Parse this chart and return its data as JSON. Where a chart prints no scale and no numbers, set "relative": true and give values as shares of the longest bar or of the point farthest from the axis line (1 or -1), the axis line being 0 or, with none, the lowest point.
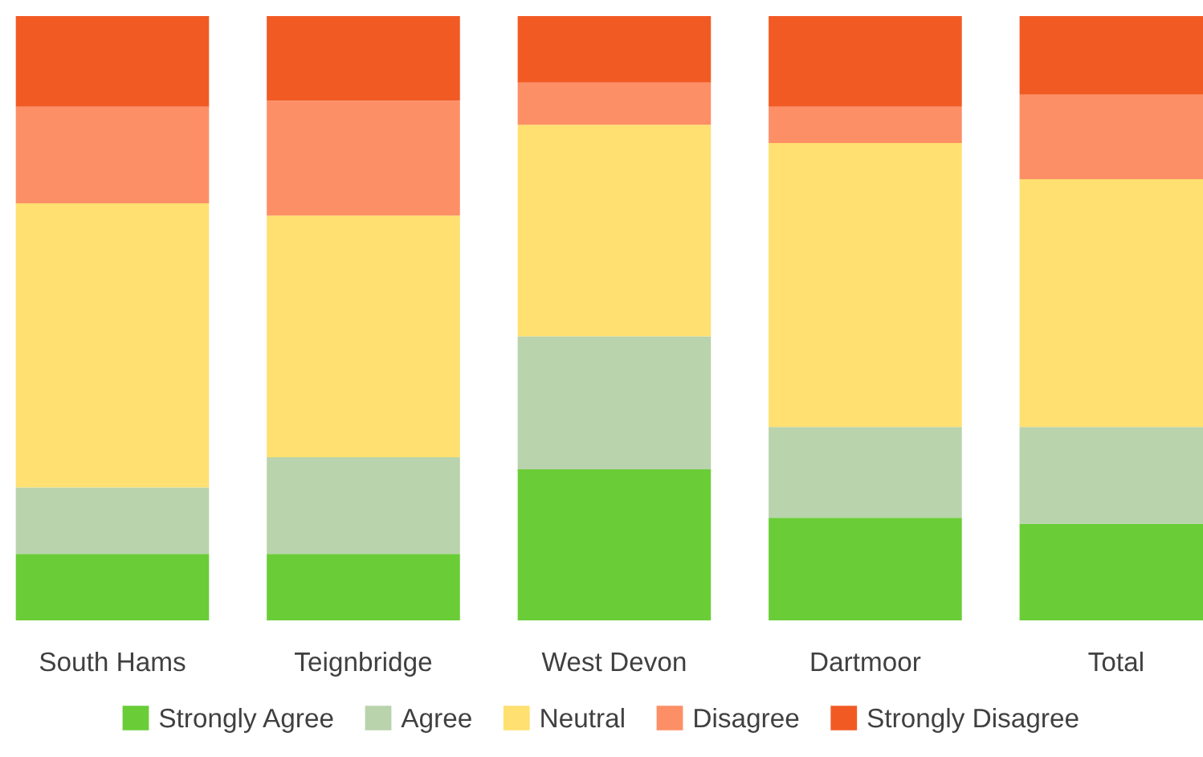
{
  "chart_data": {
    "type": "bar",
    "stacked": true,
    "relative": true,
    "legend": "bottom",
    "grid": false,
    "categories": [
      "South Hams",
      "Teignbridge",
      "West Devon",
      "Dartmoor",
      "Total"
    ],
    "series": [
      {
        "name": "Strongly Agree",
        "color": "#6acd38",
        "values": [
          0.11,
          0.11,
          0.25,
          0.17,
          0.16
        ]
      },
      {
        "name": "Agree",
        "color": "#b9d3ad",
        "values": [
          0.11,
          0.16,
          0.22,
          0.15,
          0.16
        ]
      },
      {
        "name": "Neutral",
        "color": "#ffe070",
        "values": [
          0.47,
          0.4,
          0.35,
          0.47,
          0.41
        ]
      },
      {
        "name": "Disagree",
        "color": "#fd8f66",
        "values": [
          0.16,
          0.19,
          0.07,
          0.06,
          0.14
        ]
      },
      {
        "name": "Strongly Disagree",
        "color": "#f25a24",
        "values": [
          0.15,
          0.14,
          0.11,
          0.15,
          0.13
        ]
      }
    ]
  }
}
